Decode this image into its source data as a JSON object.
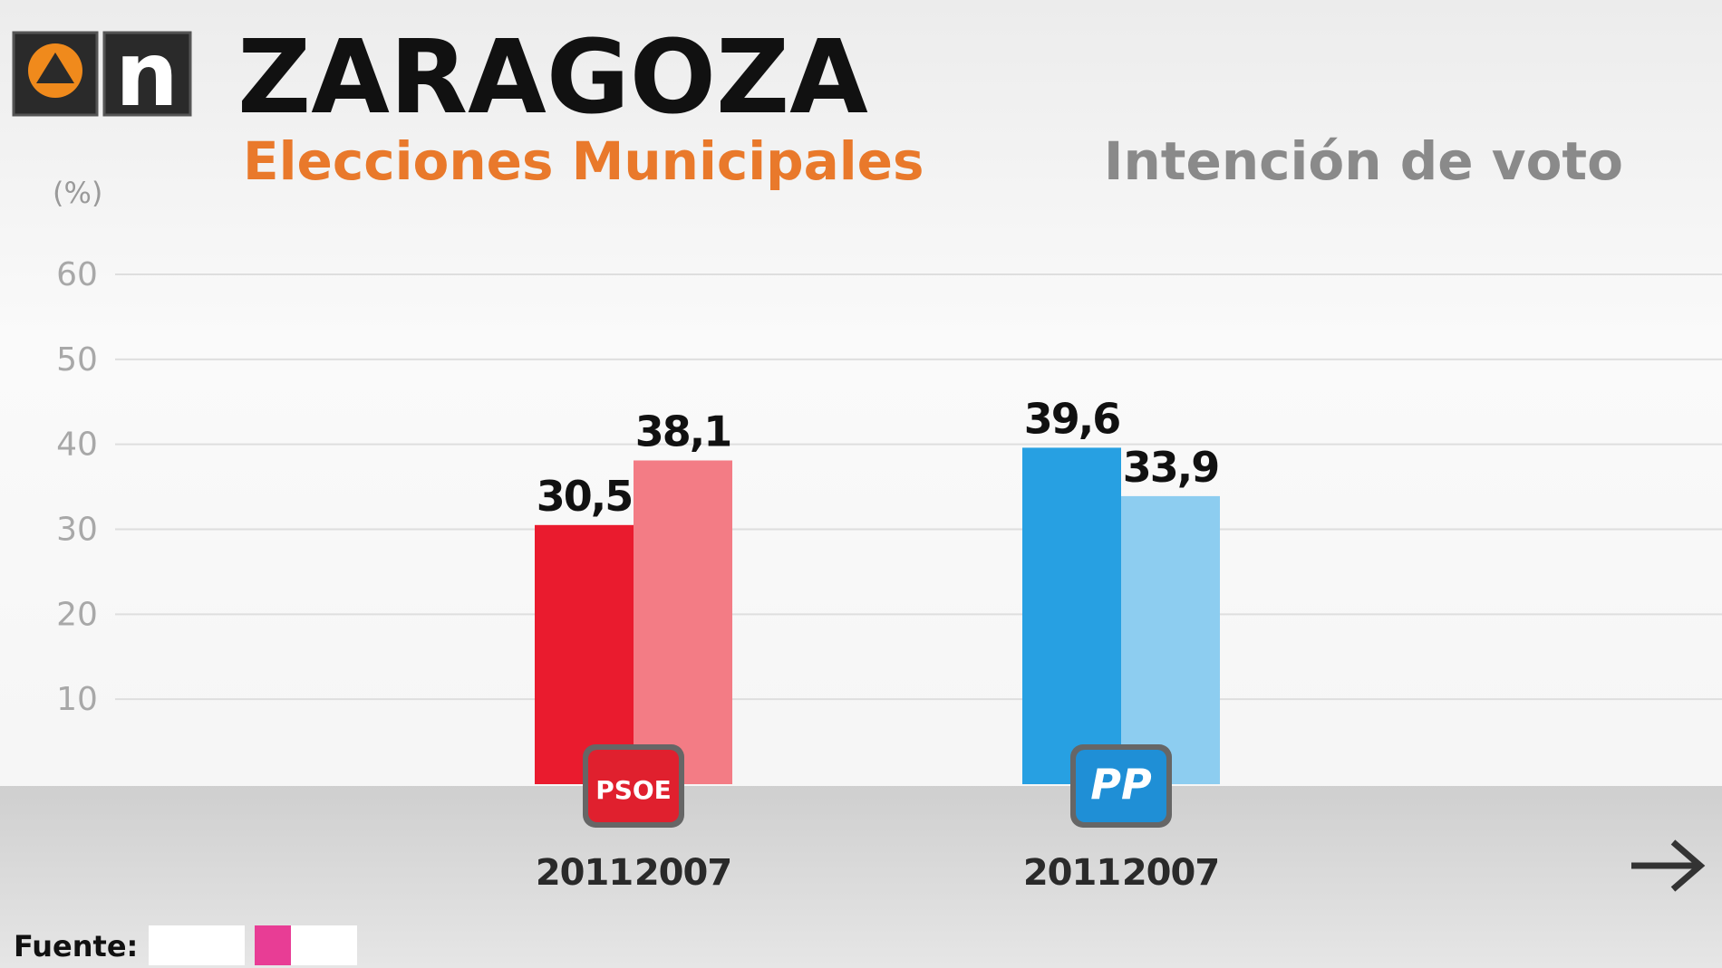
{
  "chart_data": {
    "type": "bar",
    "channel": "n",
    "title": "ZARAGOZA",
    "subtitle": "Elecciones Municipales",
    "right_title": "Intención de voto",
    "y_label": "(%)",
    "source_label": "Fuente:",
    "categories": [
      "PSOE",
      "PP"
    ],
    "series": [
      {
        "name": "2011",
        "colors": [
          "#ea1b2e",
          "#27a0e2"
        ],
        "values": [
          30.5,
          39.6
        ],
        "value_labels": [
          "30,5",
          "39,6"
        ]
      },
      {
        "name": "2007",
        "colors": [
          "#f37c85",
          "#8dcdf0"
        ],
        "values": [
          38.1,
          33.9
        ],
        "value_labels": [
          "38,1",
          "33,9"
        ]
      }
    ],
    "category_colors": [
      "#e0202e",
      "#1f8fd6"
    ],
    "ylim": [
      0,
      60
    ],
    "yticks": [
      10,
      20,
      30,
      40,
      50,
      60
    ],
    "grid": true
  }
}
